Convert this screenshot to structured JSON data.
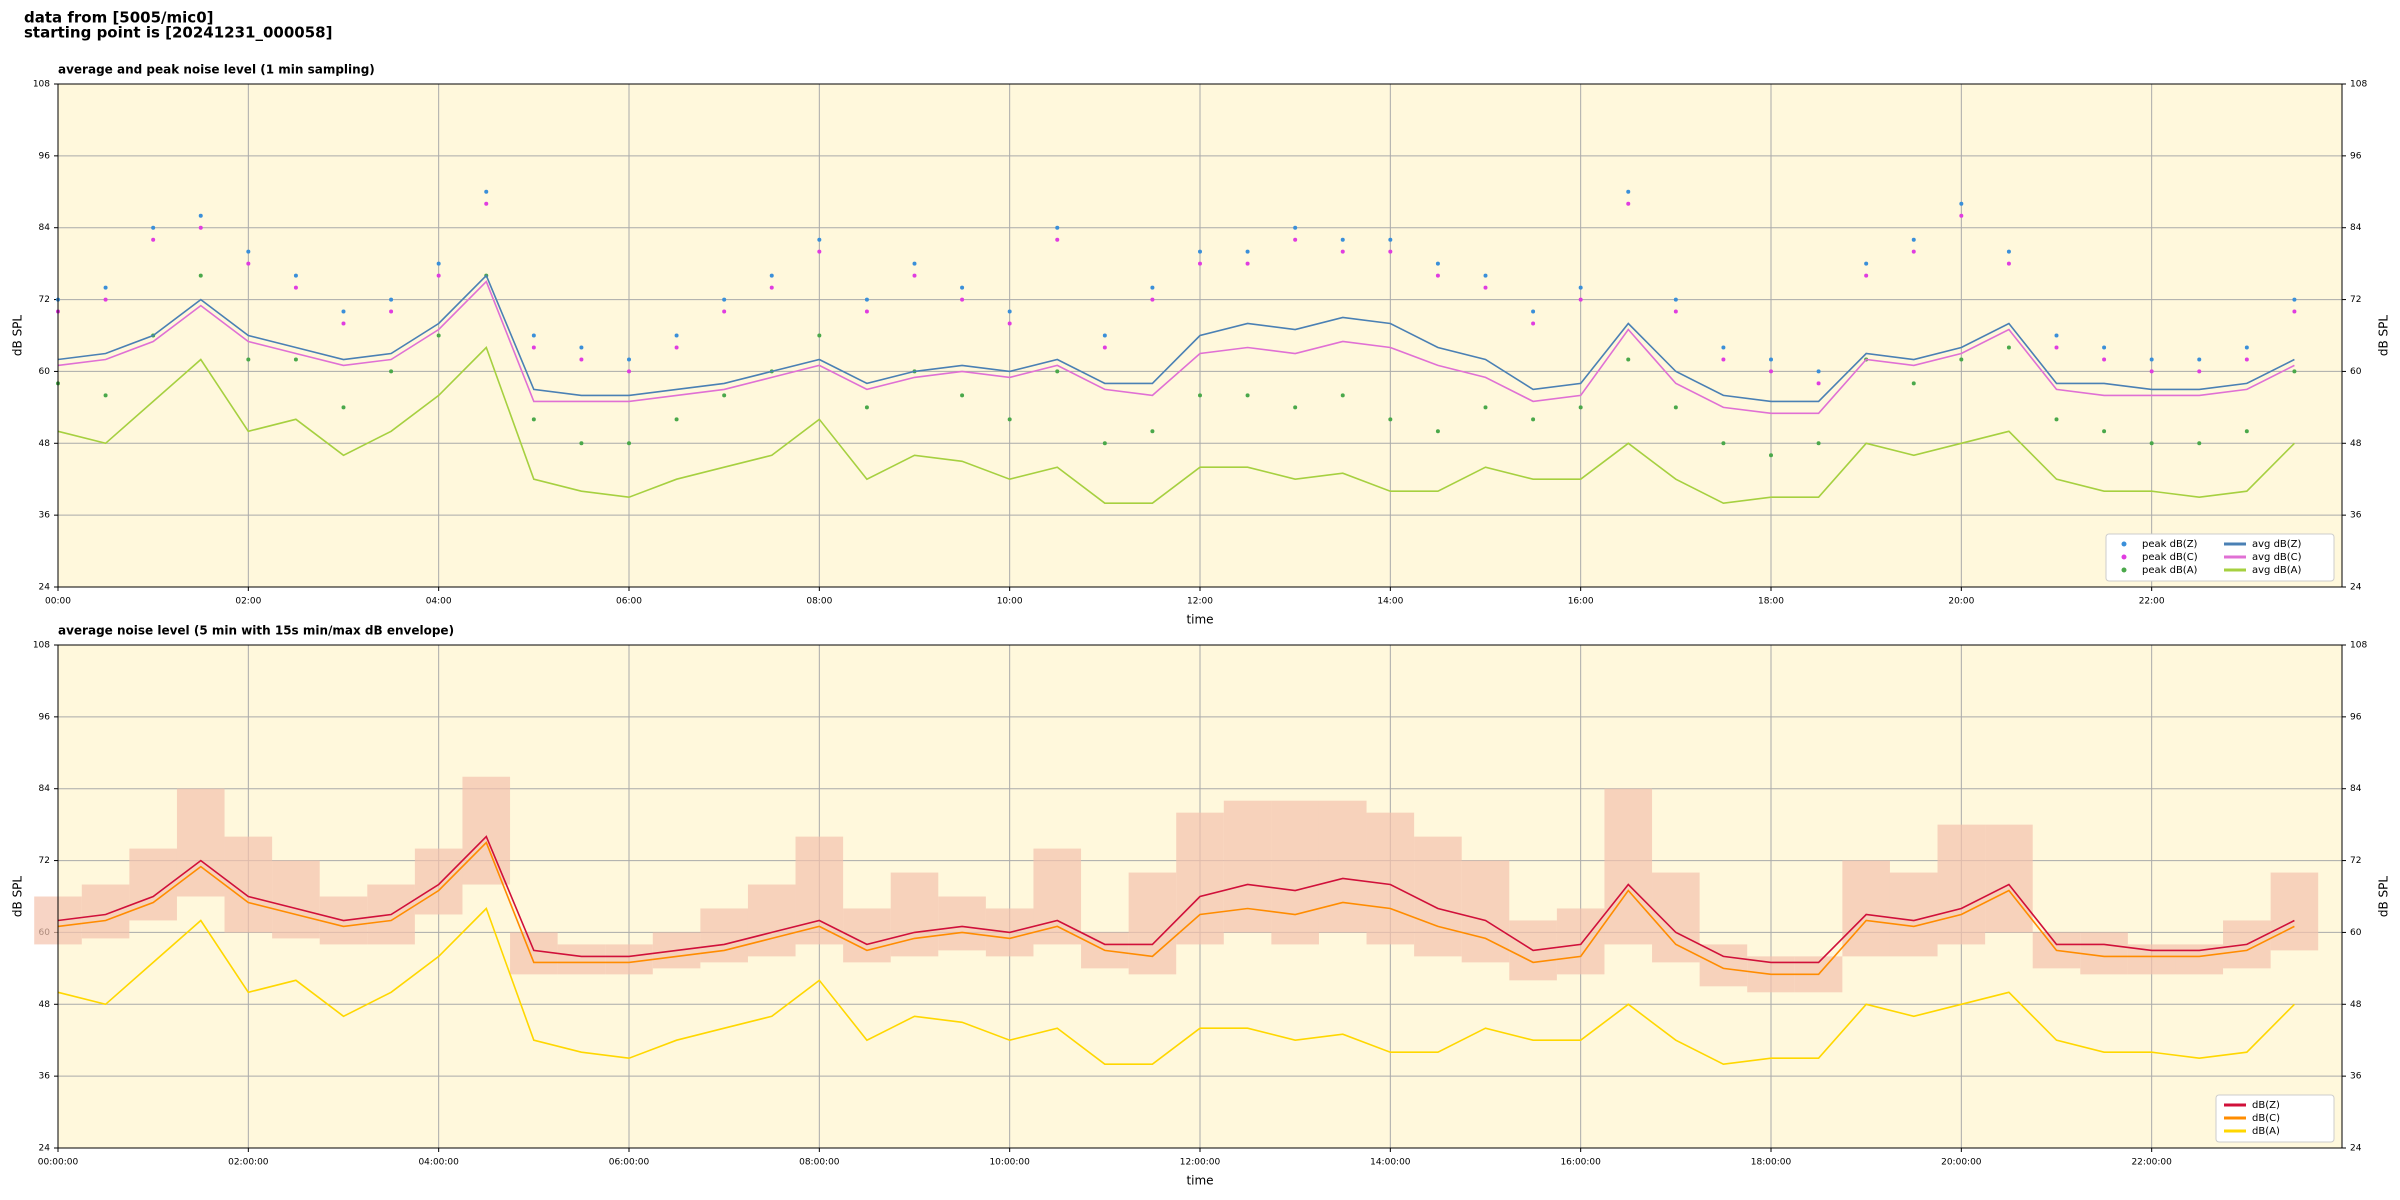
{
  "header": {
    "line1": "data from [5005/mic0]",
    "line2": "starting point is [20241231_000058]"
  },
  "chart_data": [
    {
      "type": "line",
      "title": "average and peak noise level (1 min sampling)",
      "xlabel": "time",
      "ylabel": "dB SPL",
      "x": [
        0,
        0.5,
        1,
        1.5,
        2,
        2.5,
        3,
        3.5,
        4,
        4.5,
        5,
        5.5,
        6,
        6.5,
        7,
        7.5,
        8,
        8.5,
        9,
        9.5,
        10,
        10.5,
        11,
        11.5,
        12,
        12.5,
        13,
        13.5,
        14,
        14.5,
        15,
        15.5,
        16,
        16.5,
        17,
        17.5,
        18,
        18.5,
        19,
        19.5,
        20,
        20.5,
        21,
        21.5,
        22,
        22.5,
        23,
        23.5
      ],
      "xlim": [
        0,
        24
      ],
      "ylim": [
        24,
        108
      ],
      "yticks": [
        24,
        36,
        48,
        60,
        72,
        84,
        96,
        108
      ],
      "xticks": [
        {
          "value": 0,
          "label": "00:00"
        },
        {
          "value": 2,
          "label": "02:00"
        },
        {
          "value": 4,
          "label": "04:00"
        },
        {
          "value": 6,
          "label": "06:00"
        },
        {
          "value": 8,
          "label": "08:00"
        },
        {
          "value": 10,
          "label": "10:00"
        },
        {
          "value": 12,
          "label": "12:00"
        },
        {
          "value": 14,
          "label": "14:00"
        },
        {
          "value": 16,
          "label": "16:00"
        },
        {
          "value": 18,
          "label": "18:00"
        },
        {
          "value": 20,
          "label": "20:00"
        },
        {
          "value": 22,
          "label": "22:00"
        }
      ],
      "grid": true,
      "legend": "lower right",
      "series": [
        {
          "name": "peak dB(Z)",
          "kind": "scatter",
          "color": "#3a8fd9",
          "values": [
            72,
            74,
            84,
            86,
            80,
            76,
            70,
            72,
            78,
            90,
            66,
            64,
            62,
            66,
            72,
            76,
            82,
            72,
            78,
            74,
            70,
            84,
            66,
            74,
            80,
            80,
            84,
            82,
            82,
            78,
            76,
            70,
            74,
            90,
            72,
            64,
            62,
            60,
            78,
            82,
            88,
            80,
            66,
            64,
            62,
            62,
            64,
            72
          ]
        },
        {
          "name": "peak dB(C)",
          "kind": "scatter",
          "color": "#e03ce0",
          "values": [
            70,
            72,
            82,
            84,
            78,
            74,
            68,
            70,
            76,
            88,
            64,
            62,
            60,
            64,
            70,
            74,
            80,
            70,
            76,
            72,
            68,
            82,
            64,
            72,
            78,
            78,
            82,
            80,
            80,
            76,
            74,
            68,
            72,
            88,
            70,
            62,
            60,
            58,
            76,
            80,
            86,
            78,
            64,
            62,
            60,
            60,
            62,
            70
          ]
        },
        {
          "name": "peak dB(A)",
          "kind": "scatter",
          "color": "#4aa84a",
          "values": [
            58,
            56,
            66,
            76,
            62,
            62,
            54,
            60,
            66,
            76,
            52,
            48,
            48,
            52,
            56,
            60,
            66,
            54,
            60,
            56,
            52,
            60,
            48,
            50,
            56,
            56,
            54,
            56,
            52,
            50,
            54,
            52,
            54,
            62,
            54,
            48,
            46,
            48,
            62,
            58,
            62,
            64,
            52,
            50,
            48,
            48,
            50,
            60
          ]
        },
        {
          "name": "avg dB(Z)",
          "kind": "line",
          "color": "#4a80b4",
          "values": [
            62,
            63,
            66,
            72,
            66,
            64,
            62,
            63,
            68,
            76,
            57,
            56,
            56,
            57,
            58,
            60,
            62,
            58,
            60,
            61,
            60,
            62,
            58,
            58,
            66,
            68,
            67,
            69,
            68,
            64,
            62,
            57,
            58,
            68,
            60,
            56,
            55,
            55,
            63,
            62,
            64,
            68,
            58,
            58,
            57,
            57,
            58,
            62
          ]
        },
        {
          "name": "avg dB(C)",
          "kind": "line",
          "color": "#e070d4",
          "values": [
            61,
            62,
            65,
            71,
            65,
            63,
            61,
            62,
            67,
            75,
            55,
            55,
            55,
            56,
            57,
            59,
            61,
            57,
            59,
            60,
            59,
            61,
            57,
            56,
            63,
            64,
            63,
            65,
            64,
            61,
            59,
            55,
            56,
            67,
            58,
            54,
            53,
            53,
            62,
            61,
            63,
            67,
            57,
            56,
            56,
            56,
            57,
            61
          ]
        },
        {
          "name": "avg dB(A)",
          "kind": "line",
          "color": "#a6d040",
          "values": [
            50,
            48,
            55,
            62,
            50,
            52,
            46,
            50,
            56,
            64,
            42,
            40,
            39,
            42,
            44,
            46,
            52,
            42,
            46,
            45,
            42,
            44,
            38,
            38,
            44,
            44,
            42,
            43,
            40,
            40,
            44,
            42,
            42,
            48,
            42,
            38,
            39,
            39,
            48,
            46,
            48,
            50,
            42,
            40,
            40,
            39,
            40,
            48
          ]
        }
      ]
    },
    {
      "type": "line",
      "title": "average noise level (5 min with 15s min/max dB envelope)",
      "xlabel": "time",
      "ylabel": "dB SPL",
      "x": [
        0,
        0.5,
        1,
        1.5,
        2,
        2.5,
        3,
        3.5,
        4,
        4.5,
        5,
        5.5,
        6,
        6.5,
        7,
        7.5,
        8,
        8.5,
        9,
        9.5,
        10,
        10.5,
        11,
        11.5,
        12,
        12.5,
        13,
        13.5,
        14,
        14.5,
        15,
        15.5,
        16,
        16.5,
        17,
        17.5,
        18,
        18.5,
        19,
        19.5,
        20,
        20.5,
        21,
        21.5,
        22,
        22.5,
        23,
        23.5
      ],
      "xlim": [
        0,
        24
      ],
      "ylim": [
        24,
        108
      ],
      "yticks": [
        24,
        36,
        48,
        60,
        72,
        84,
        96,
        108
      ],
      "xticks": [
        {
          "value": 0,
          "label": "00:00:00"
        },
        {
          "value": 2,
          "label": "02:00:00"
        },
        {
          "value": 4,
          "label": "04:00:00"
        },
        {
          "value": 6,
          "label": "06:00:00"
        },
        {
          "value": 8,
          "label": "08:00:00"
        },
        {
          "value": 10,
          "label": "10:00:00"
        },
        {
          "value": 12,
          "label": "12:00:00"
        },
        {
          "value": 14,
          "label": "14:00:00"
        },
        {
          "value": 16,
          "label": "16:00:00"
        },
        {
          "value": 18,
          "label": "18:00:00"
        },
        {
          "value": 20,
          "label": "20:00:00"
        },
        {
          "value": 22,
          "label": "22:00:00"
        }
      ],
      "grid": true,
      "legend": "lower right",
      "envelope": {
        "color": "#f4c2ac",
        "low": [
          58,
          59,
          62,
          66,
          60,
          59,
          58,
          58,
          63,
          68,
          53,
          53,
          53,
          54,
          55,
          56,
          58,
          55,
          56,
          57,
          56,
          58,
          54,
          53,
          58,
          60,
          58,
          60,
          58,
          56,
          55,
          52,
          53,
          58,
          55,
          51,
          50,
          50,
          56,
          56,
          58,
          60,
          54,
          53,
          53,
          53,
          54,
          57
        ],
        "high": [
          66,
          68,
          74,
          84,
          76,
          72,
          66,
          68,
          74,
          86,
          60,
          58,
          58,
          60,
          64,
          68,
          76,
          64,
          70,
          66,
          64,
          74,
          60,
          70,
          80,
          82,
          82,
          82,
          80,
          76,
          72,
          62,
          64,
          84,
          70,
          58,
          56,
          56,
          72,
          70,
          78,
          78,
          60,
          60,
          58,
          58,
          62,
          70
        ]
      },
      "series": [
        {
          "name": "dB(Z)",
          "kind": "line",
          "color": "#d0103a",
          "values": [
            62,
            63,
            66,
            72,
            66,
            64,
            62,
            63,
            68,
            76,
            57,
            56,
            56,
            57,
            58,
            60,
            62,
            58,
            60,
            61,
            60,
            62,
            58,
            58,
            66,
            68,
            67,
            69,
            68,
            64,
            62,
            57,
            58,
            68,
            60,
            56,
            55,
            55,
            63,
            62,
            64,
            68,
            58,
            58,
            57,
            57,
            58,
            62
          ]
        },
        {
          "name": "dB(C)",
          "kind": "line",
          "color": "#ff8c00",
          "values": [
            61,
            62,
            65,
            71,
            65,
            63,
            61,
            62,
            67,
            75,
            55,
            55,
            55,
            56,
            57,
            59,
            61,
            57,
            59,
            60,
            59,
            61,
            57,
            56,
            63,
            64,
            63,
            65,
            64,
            61,
            59,
            55,
            56,
            67,
            58,
            54,
            53,
            53,
            62,
            61,
            63,
            67,
            57,
            56,
            56,
            56,
            57,
            61
          ]
        },
        {
          "name": "dB(A)",
          "kind": "line",
          "color": "#ffd700",
          "values": [
            50,
            48,
            55,
            62,
            50,
            52,
            46,
            50,
            56,
            64,
            42,
            40,
            39,
            42,
            44,
            46,
            52,
            42,
            46,
            45,
            42,
            44,
            38,
            38,
            44,
            44,
            42,
            43,
            40,
            40,
            44,
            42,
            42,
            48,
            42,
            38,
            39,
            39,
            48,
            46,
            48,
            50,
            42,
            40,
            40,
            39,
            40,
            48
          ]
        }
      ]
    }
  ]
}
